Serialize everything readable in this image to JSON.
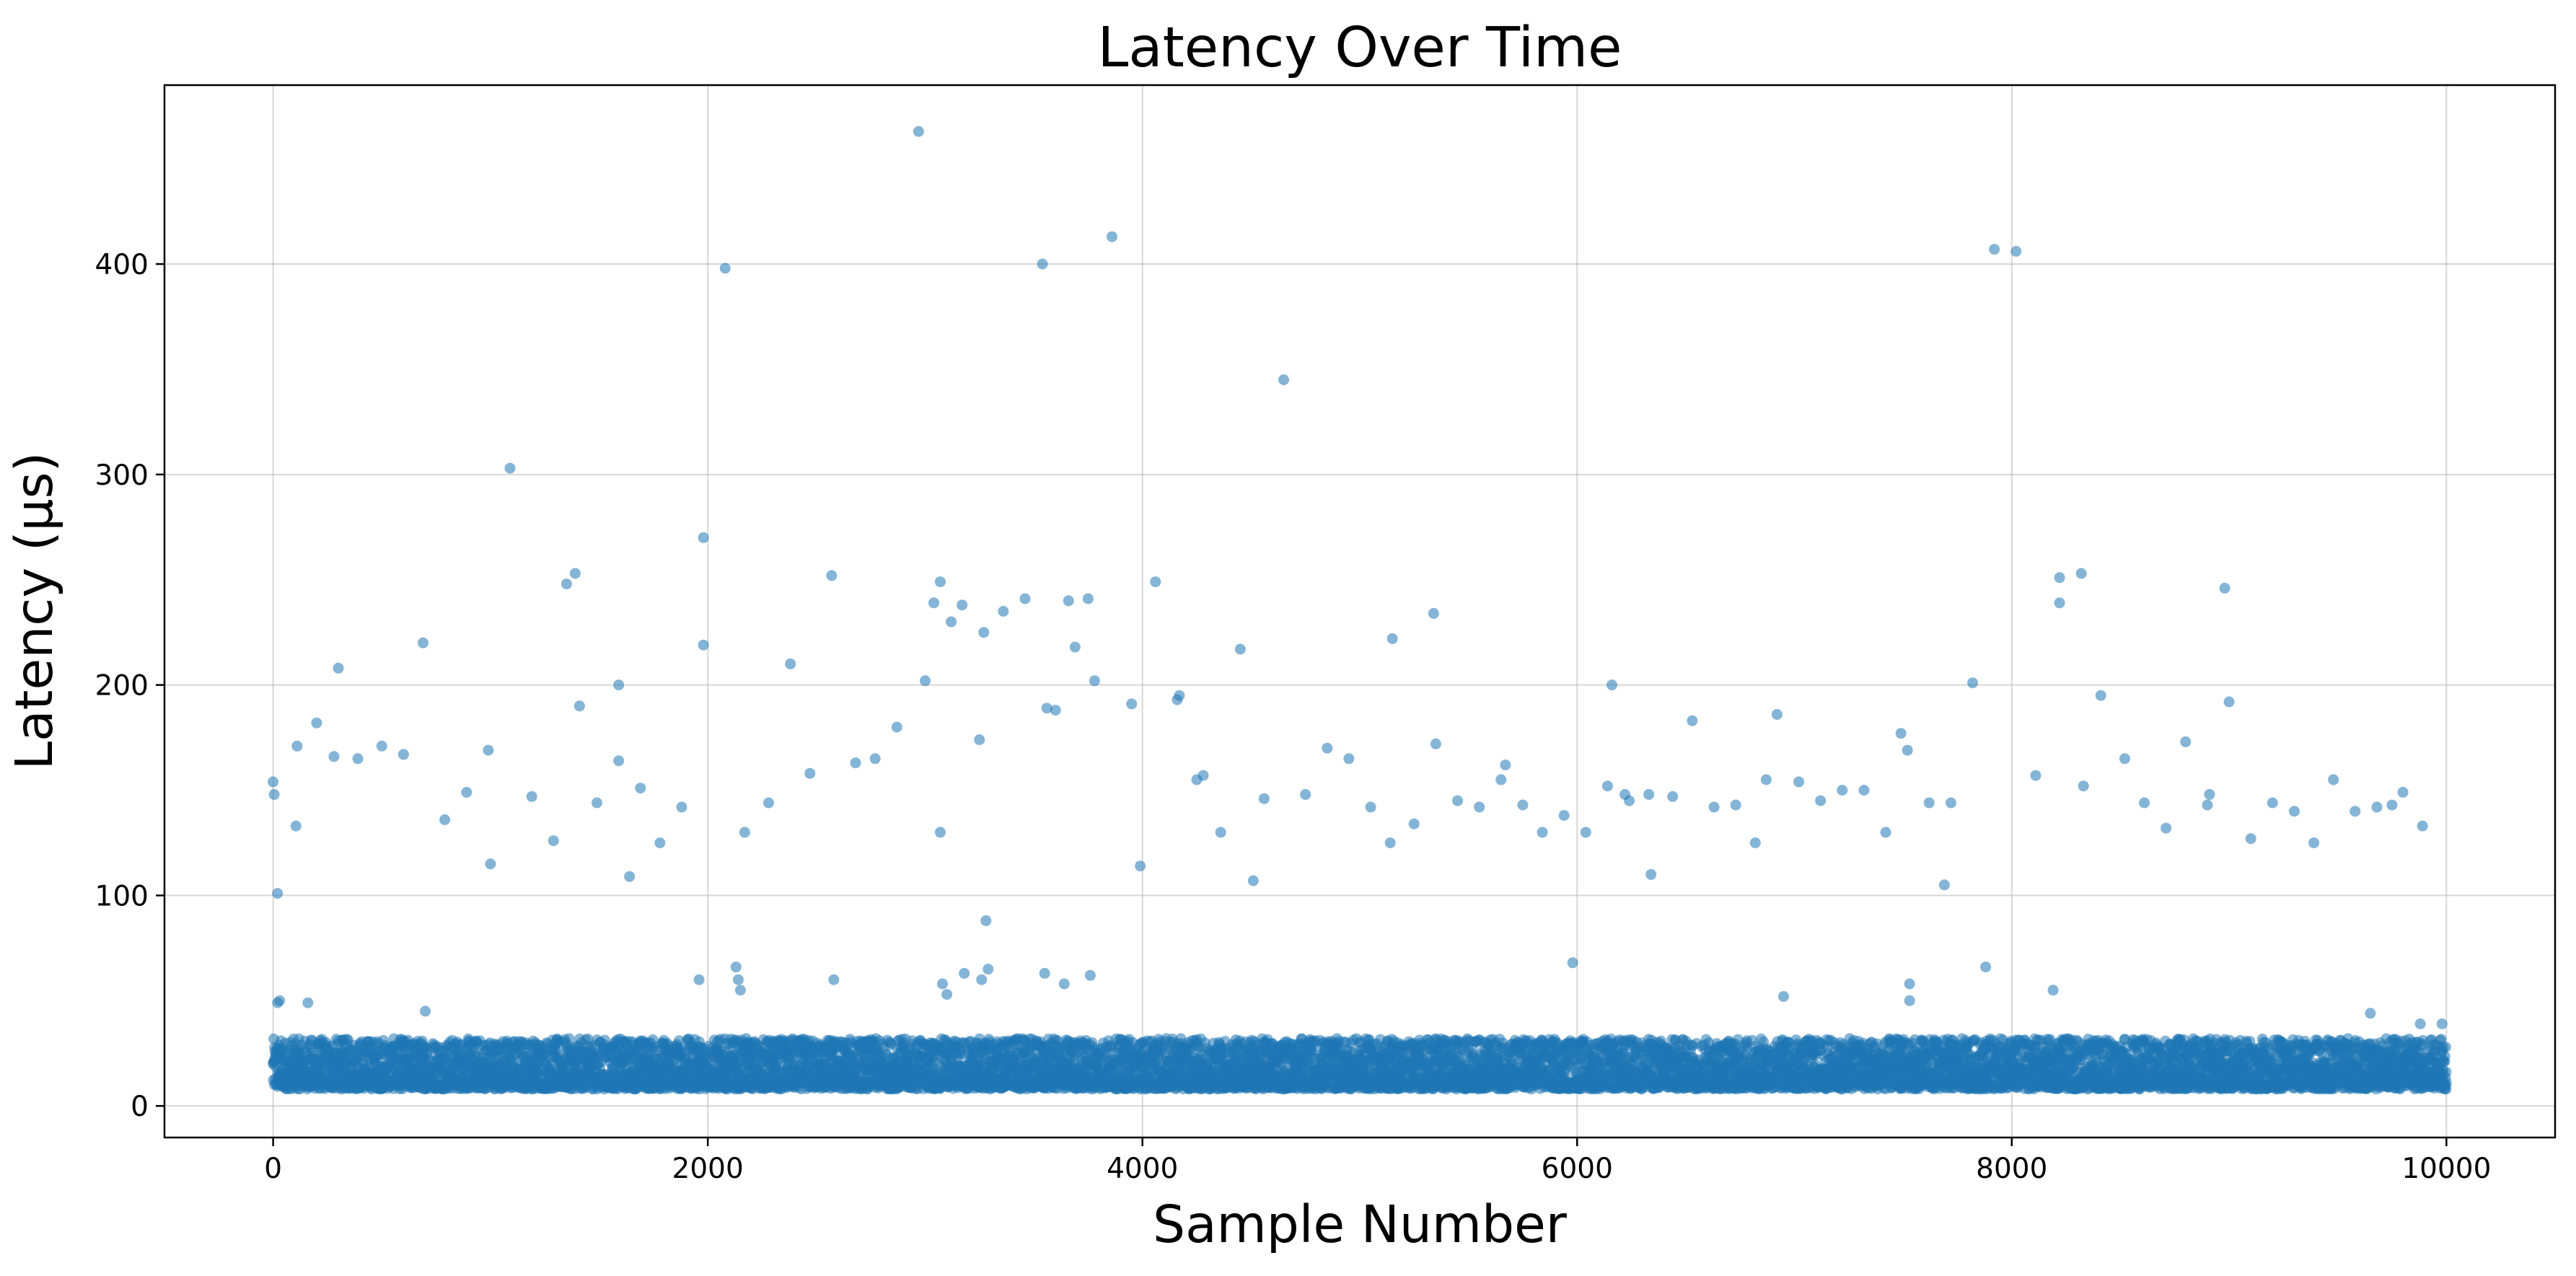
{
  "chart_data": {
    "type": "scatter",
    "title": "Latency Over Time",
    "xlabel": "Sample Number",
    "ylabel": "Latency (µs)",
    "xlim": [
      -500,
      10500
    ],
    "ylim": [
      -15,
      485
    ],
    "xticks": [
      0,
      2000,
      4000,
      6000,
      8000,
      10000
    ],
    "yticks": [
      0,
      100,
      200,
      300,
      400
    ],
    "grid": true,
    "marker_color": "#1f77b4",
    "marker_alpha": 0.55,
    "series": [
      {
        "dense_band": {
          "x_range": [
            0,
            10000
          ],
          "y_range": [
            8,
            32
          ],
          "n": 10000
        },
        "outliers": [
          [
            0,
            154
          ],
          [
            5,
            148
          ],
          [
            20,
            101
          ],
          [
            30,
            50
          ],
          [
            20,
            49
          ],
          [
            110,
            171
          ],
          [
            105,
            133
          ],
          [
            160,
            49
          ],
          [
            200,
            182
          ],
          [
            280,
            166
          ],
          [
            300,
            208
          ],
          [
            390,
            165
          ],
          [
            500,
            171
          ],
          [
            600,
            167
          ],
          [
            690,
            220
          ],
          [
            700,
            45
          ],
          [
            790,
            136
          ],
          [
            890,
            149
          ],
          [
            990,
            169
          ],
          [
            1000,
            115
          ],
          [
            1090,
            303
          ],
          [
            1190,
            147
          ],
          [
            1290,
            126
          ],
          [
            1350,
            248
          ],
          [
            1390,
            253
          ],
          [
            1410,
            190
          ],
          [
            1490,
            144
          ],
          [
            1590,
            200
          ],
          [
            1590,
            164
          ],
          [
            1640,
            109
          ],
          [
            1690,
            151
          ],
          [
            1780,
            125
          ],
          [
            1880,
            142
          ],
          [
            1960,
            60
          ],
          [
            1980,
            219
          ],
          [
            1980,
            270
          ],
          [
            2080,
            398
          ],
          [
            2130,
            66
          ],
          [
            2140,
            60
          ],
          [
            2150,
            55
          ],
          [
            2170,
            130
          ],
          [
            2280,
            144
          ],
          [
            2380,
            210
          ],
          [
            2470,
            158
          ],
          [
            2570,
            252
          ],
          [
            2580,
            60
          ],
          [
            2680,
            163
          ],
          [
            2770,
            165
          ],
          [
            2870,
            180
          ],
          [
            2970,
            463
          ],
          [
            3000,
            202
          ],
          [
            3040,
            239
          ],
          [
            3070,
            249
          ],
          [
            3070,
            130
          ],
          [
            3080,
            58
          ],
          [
            3100,
            53
          ],
          [
            3120,
            230
          ],
          [
            3170,
            238
          ],
          [
            3180,
            63
          ],
          [
            3250,
            174
          ],
          [
            3260,
            60
          ],
          [
            3270,
            225
          ],
          [
            3280,
            88
          ],
          [
            3290,
            65
          ],
          [
            3360,
            235
          ],
          [
            3460,
            241
          ],
          [
            3540,
            400
          ],
          [
            3550,
            63
          ],
          [
            3560,
            189
          ],
          [
            3600,
            188
          ],
          [
            3640,
            58
          ],
          [
            3660,
            240
          ],
          [
            3690,
            218
          ],
          [
            3750,
            241
          ],
          [
            3760,
            62
          ],
          [
            3780,
            202
          ],
          [
            3860,
            413
          ],
          [
            3950,
            191
          ],
          [
            3990,
            114
          ],
          [
            4060,
            249
          ],
          [
            4160,
            193
          ],
          [
            4170,
            195
          ],
          [
            4250,
            155
          ],
          [
            4280,
            157
          ],
          [
            4360,
            130
          ],
          [
            4450,
            217
          ],
          [
            4510,
            107
          ],
          [
            4560,
            146
          ],
          [
            4650,
            345
          ],
          [
            4750,
            148
          ],
          [
            4850,
            170
          ],
          [
            4950,
            165
          ],
          [
            5050,
            142
          ],
          [
            5140,
            125
          ],
          [
            5150,
            222
          ],
          [
            5250,
            134
          ],
          [
            5340,
            234
          ],
          [
            5350,
            172
          ],
          [
            5450,
            145
          ],
          [
            5550,
            142
          ],
          [
            5650,
            155
          ],
          [
            5670,
            162
          ],
          [
            5750,
            143
          ],
          [
            5840,
            130
          ],
          [
            5940,
            138
          ],
          [
            5980,
            68
          ],
          [
            6040,
            130
          ],
          [
            6140,
            152
          ],
          [
            6160,
            200
          ],
          [
            6220,
            148
          ],
          [
            6240,
            145
          ],
          [
            6330,
            148
          ],
          [
            6340,
            110
          ],
          [
            6440,
            147
          ],
          [
            6530,
            183
          ],
          [
            6630,
            142
          ],
          [
            6730,
            143
          ],
          [
            6820,
            125
          ],
          [
            6870,
            155
          ],
          [
            6920,
            186
          ],
          [
            6950,
            52
          ],
          [
            7020,
            154
          ],
          [
            7120,
            145
          ],
          [
            7220,
            150
          ],
          [
            7320,
            150
          ],
          [
            7420,
            130
          ],
          [
            7490,
            177
          ],
          [
            7520,
            169
          ],
          [
            7530,
            58
          ],
          [
            7530,
            50
          ],
          [
            7620,
            144
          ],
          [
            7690,
            105
          ],
          [
            7720,
            144
          ],
          [
            7820,
            201
          ],
          [
            7880,
            66
          ],
          [
            7920,
            407
          ],
          [
            8020,
            406
          ],
          [
            8110,
            157
          ],
          [
            8190,
            55
          ],
          [
            8220,
            251
          ],
          [
            8220,
            239
          ],
          [
            8320,
            253
          ],
          [
            8330,
            152
          ],
          [
            8410,
            195
          ],
          [
            8520,
            165
          ],
          [
            8610,
            144
          ],
          [
            8710,
            132
          ],
          [
            8800,
            173
          ],
          [
            8900,
            143
          ],
          [
            8910,
            148
          ],
          [
            8980,
            246
          ],
          [
            9000,
            192
          ],
          [
            9100,
            127
          ],
          [
            9200,
            144
          ],
          [
            9300,
            140
          ],
          [
            9390,
            125
          ],
          [
            9480,
            155
          ],
          [
            9580,
            140
          ],
          [
            9680,
            142
          ],
          [
            9750,
            143
          ],
          [
            9800,
            149
          ],
          [
            9890,
            133
          ],
          [
            9650,
            44
          ],
          [
            9880,
            39
          ],
          [
            9980,
            39
          ]
        ]
      }
    ]
  }
}
